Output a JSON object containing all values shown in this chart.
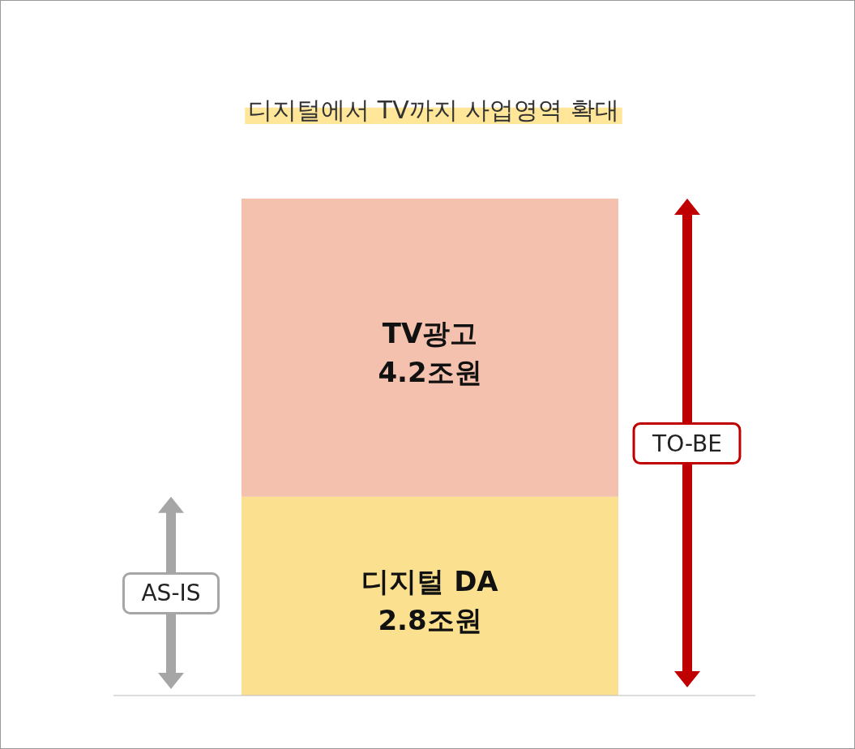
{
  "chart_data": {
    "type": "bar",
    "title": "디지털에서 TV까지 사업영역 확대",
    "categories": [
      null
    ],
    "stacked": true,
    "series": [
      {
        "name": "디지털 DA",
        "color": "#fbe08f",
        "values": [
          2.8
        ],
        "value_labels": [
          "2.8조원"
        ]
      },
      {
        "name": "TV광고",
        "color": "#f3c1ad",
        "values": [
          4.2
        ],
        "value_labels": [
          "4.2조원"
        ]
      }
    ],
    "annotations": [
      "AS-IS",
      "TO-BE"
    ]
  }
}
